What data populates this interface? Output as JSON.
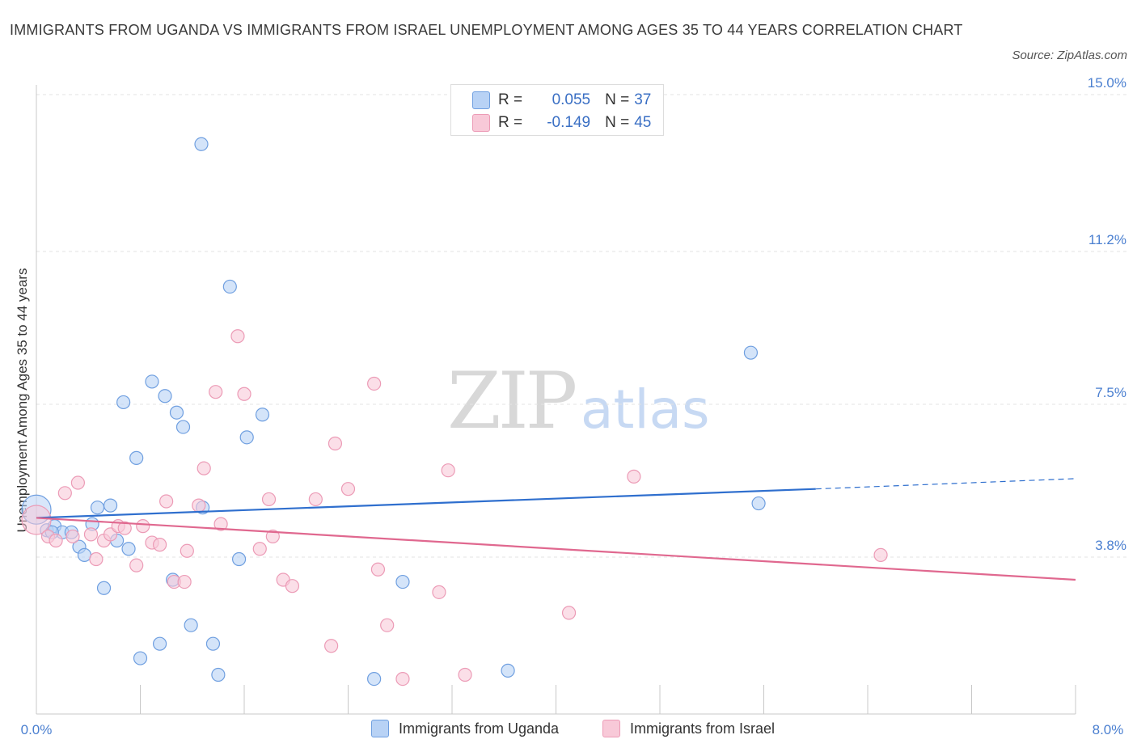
{
  "chart_data": {
    "type": "scatter",
    "title": "IMMIGRANTS FROM UGANDA VS IMMIGRANTS FROM ISRAEL UNEMPLOYMENT AMONG AGES 35 TO 44 YEARS CORRELATION CHART",
    "source": "Source: ZipAtlas.com",
    "xlabel": "",
    "ylabel": "Unemployment Among Ages 35 to 44 years",
    "xlim": [
      0,
      8
    ],
    "ylim": [
      0,
      15
    ],
    "x_tick_labels": {
      "min": "0.0%",
      "max": "8.0%"
    },
    "y_ticks": [
      {
        "value": 3.8,
        "label": "3.8%"
      },
      {
        "value": 7.5,
        "label": "7.5%"
      },
      {
        "value": 11.2,
        "label": "11.2%"
      },
      {
        "value": 15.0,
        "label": "15.0%"
      }
    ],
    "grid": true,
    "watermark": {
      "zip": "ZIP",
      "atlas": "atlas"
    },
    "series": [
      {
        "name": "Immigrants from Uganda",
        "color": "#6f9fe0",
        "fill": "#b8d2f5",
        "stats": {
          "r_label": "R =",
          "r": "0.055",
          "n_label": "N =",
          "n": "37"
        },
        "trend": {
          "x0": 0,
          "y0": 4.75,
          "x1": 6.0,
          "y1": 5.45,
          "dash_x1": 8.0,
          "dash_y1": 5.7,
          "color": "#2f6fce"
        },
        "points": [
          {
            "x": 0.0,
            "y": 4.95,
            "big": true
          },
          {
            "x": 0.08,
            "y": 4.45
          },
          {
            "x": 0.14,
            "y": 4.55
          },
          {
            "x": 0.2,
            "y": 4.4
          },
          {
            "x": 0.27,
            "y": 4.4
          },
          {
            "x": 0.33,
            "y": 4.05
          },
          {
            "x": 0.37,
            "y": 3.85
          },
          {
            "x": 0.43,
            "y": 4.6
          },
          {
            "x": 0.47,
            "y": 5.0
          },
          {
            "x": 0.52,
            "y": 3.05
          },
          {
            "x": 0.57,
            "y": 5.05
          },
          {
            "x": 0.62,
            "y": 4.2
          },
          {
            "x": 0.67,
            "y": 7.55
          },
          {
            "x": 0.71,
            "y": 4.0
          },
          {
            "x": 0.77,
            "y": 6.2
          },
          {
            "x": 0.8,
            "y": 1.35
          },
          {
            "x": 0.89,
            "y": 8.05
          },
          {
            "x": 0.95,
            "y": 1.7
          },
          {
            "x": 0.99,
            "y": 7.7
          },
          {
            "x": 1.05,
            "y": 3.25
          },
          {
            "x": 1.08,
            "y": 7.3
          },
          {
            "x": 1.13,
            "y": 6.95
          },
          {
            "x": 1.19,
            "y": 2.15
          },
          {
            "x": 1.28,
            "y": 5.0
          },
          {
            "x": 1.27,
            "y": 13.8
          },
          {
            "x": 1.36,
            "y": 1.7
          },
          {
            "x": 1.4,
            "y": 0.95
          },
          {
            "x": 1.49,
            "y": 10.35
          },
          {
            "x": 1.56,
            "y": 3.75
          },
          {
            "x": 1.62,
            "y": 6.7
          },
          {
            "x": 1.74,
            "y": 7.25
          },
          {
            "x": 2.6,
            "y": 0.85
          },
          {
            "x": 2.82,
            "y": 3.2
          },
          {
            "x": 3.63,
            "y": 1.05
          },
          {
            "x": 5.5,
            "y": 8.75
          },
          {
            "x": 5.56,
            "y": 5.1
          },
          {
            "x": 0.12,
            "y": 4.4
          }
        ]
      },
      {
        "name": "Immigrants from Israel",
        "color": "#ec9bb6",
        "fill": "#f8c9d8",
        "stats": {
          "r_label": "R =",
          "r": "-0.149",
          "n_label": "N =",
          "n": "45"
        },
        "trend": {
          "x0": 0,
          "y0": 4.75,
          "x1": 8.0,
          "y1": 3.25,
          "color": "#e0688f"
        },
        "points": [
          {
            "x": 0.0,
            "y": 4.7,
            "big": true
          },
          {
            "x": 0.09,
            "y": 4.3
          },
          {
            "x": 0.15,
            "y": 4.2
          },
          {
            "x": 0.22,
            "y": 5.35
          },
          {
            "x": 0.28,
            "y": 4.3
          },
          {
            "x": 0.32,
            "y": 5.6
          },
          {
            "x": 0.42,
            "y": 4.35
          },
          {
            "x": 0.46,
            "y": 3.75
          },
          {
            "x": 0.52,
            "y": 4.2
          },
          {
            "x": 0.57,
            "y": 4.35
          },
          {
            "x": 0.63,
            "y": 4.55
          },
          {
            "x": 0.68,
            "y": 4.5
          },
          {
            "x": 0.77,
            "y": 3.6
          },
          {
            "x": 0.82,
            "y": 4.55
          },
          {
            "x": 0.89,
            "y": 4.15
          },
          {
            "x": 0.95,
            "y": 4.1
          },
          {
            "x": 1.0,
            "y": 5.15
          },
          {
            "x": 1.06,
            "y": 3.2
          },
          {
            "x": 1.14,
            "y": 3.2
          },
          {
            "x": 1.16,
            "y": 3.95
          },
          {
            "x": 1.25,
            "y": 5.05
          },
          {
            "x": 1.29,
            "y": 5.95
          },
          {
            "x": 1.38,
            "y": 7.8
          },
          {
            "x": 1.42,
            "y": 4.6
          },
          {
            "x": 1.55,
            "y": 9.15
          },
          {
            "x": 1.6,
            "y": 7.75
          },
          {
            "x": 1.72,
            "y": 4.0
          },
          {
            "x": 1.79,
            "y": 5.2
          },
          {
            "x": 1.82,
            "y": 4.3
          },
          {
            "x": 1.9,
            "y": 3.25
          },
          {
            "x": 1.97,
            "y": 3.1
          },
          {
            "x": 2.15,
            "y": 5.2
          },
          {
            "x": 2.27,
            "y": 1.65
          },
          {
            "x": 2.3,
            "y": 6.55
          },
          {
            "x": 2.4,
            "y": 5.45
          },
          {
            "x": 2.6,
            "y": 8.0
          },
          {
            "x": 2.63,
            "y": 3.5
          },
          {
            "x": 2.7,
            "y": 2.15
          },
          {
            "x": 2.82,
            "y": 0.85
          },
          {
            "x": 3.17,
            "y": 5.9
          },
          {
            "x": 3.1,
            "y": 2.95
          },
          {
            "x": 3.3,
            "y": 0.95
          },
          {
            "x": 4.1,
            "y": 2.45
          },
          {
            "x": 4.6,
            "y": 5.75
          },
          {
            "x": 6.5,
            "y": 3.85
          }
        ]
      }
    ]
  }
}
